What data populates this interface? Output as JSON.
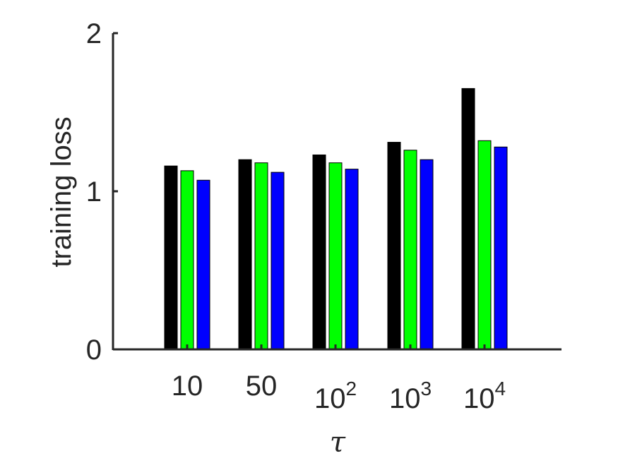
{
  "chart_data": {
    "type": "bar",
    "title": "",
    "xlabel": "τ",
    "ylabel": "training loss",
    "ylim": [
      0,
      2
    ],
    "yticks": [
      "0",
      "1",
      "2"
    ],
    "categories": [
      {
        "base": "10",
        "exp": ""
      },
      {
        "base": "50",
        "exp": ""
      },
      {
        "base": "10",
        "exp": "2"
      },
      {
        "base": "10",
        "exp": "3"
      },
      {
        "base": "10",
        "exp": "4"
      }
    ],
    "series": [
      {
        "color": "#000000",
        "values": [
          1.16,
          1.2,
          1.23,
          1.31,
          1.65
        ]
      },
      {
        "color": "#00ff00",
        "values": [
          1.13,
          1.18,
          1.18,
          1.26,
          1.32
        ]
      },
      {
        "color": "#0000ff",
        "values": [
          1.07,
          1.12,
          1.14,
          1.2,
          1.28
        ]
      }
    ],
    "grid": false,
    "legend": "none"
  }
}
